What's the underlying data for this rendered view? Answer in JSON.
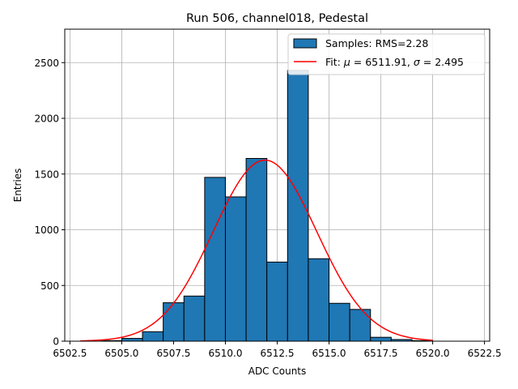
{
  "chart_data": {
    "type": "bar",
    "title": "Run 506, channel018, Pedestal",
    "xlabel": "ADC Counts",
    "ylabel": "Entries",
    "xlim": [
      6502.25,
      6522.75
    ],
    "ylim": [
      0,
      2800
    ],
    "grid": true,
    "legend_position": "top-right",
    "bin_edges": [
      6503,
      6504,
      6505,
      6506,
      6507,
      6508,
      6509,
      6510,
      6511,
      6512,
      6513,
      6514,
      6515,
      6516,
      6517,
      6518,
      6519,
      6520,
      6521,
      6522
    ],
    "counts": [
      0,
      5,
      25,
      85,
      345,
      405,
      1470,
      1295,
      1640,
      710,
      2430,
      740,
      340,
      285,
      35,
      15,
      5,
      0,
      0
    ],
    "fit": {
      "mu": 6511.91,
      "sigma": 2.495,
      "amplitude": 1625,
      "x_range": [
        6503,
        6520
      ]
    },
    "xticks": [
      6502.5,
      6505.0,
      6507.5,
      6510.0,
      6512.5,
      6515.0,
      6517.5,
      6520.0,
      6522.5
    ],
    "xtick_labels": [
      "6502.5",
      "6505.0",
      "6507.5",
      "6510.0",
      "6512.5",
      "6515.0",
      "6517.5",
      "6520.0",
      "6522.5"
    ],
    "yticks": [
      0,
      500,
      1000,
      1500,
      2000,
      2500
    ],
    "ytick_labels": [
      "0",
      "500",
      "1000",
      "1500",
      "2000",
      "2500"
    ],
    "legend": [
      {
        "label": "Samples: RMS=2.28",
        "kind": "bar",
        "color": "#1f77b4"
      },
      {
        "label_prefix": "Fit: ",
        "mu_symbol": "μ",
        "mu_text": " = 6511.91, ",
        "sigma_symbol": "σ",
        "sigma_text": " = 2.495",
        "kind": "line",
        "color": "#ff0000"
      }
    ],
    "colors": {
      "bar": "#1f77b4",
      "bar_edge": "#000000",
      "fit": "#ff0000",
      "grid": "#b0b0b0"
    }
  }
}
